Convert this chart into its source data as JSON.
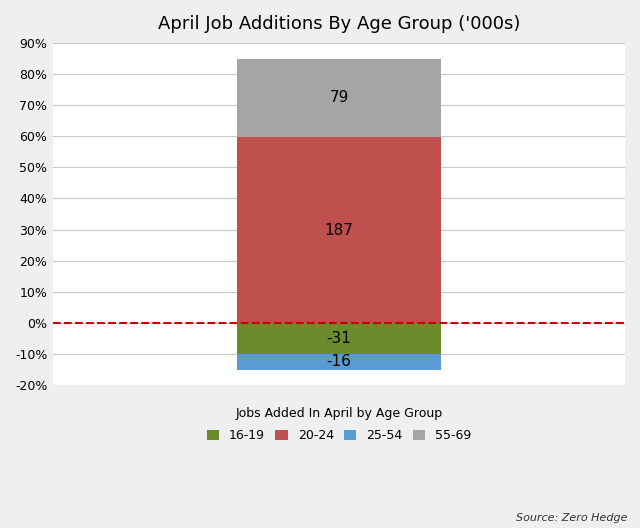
{
  "title": "April Job Additions By Age Group ('000s)",
  "xlabel": "Jobs Added In April by Age Group",
  "source": "Source: Zero Hedge",
  "segments": [
    {
      "label": "16-19",
      "value": -31,
      "scaled": -9.9,
      "color": "#6b8c2a"
    },
    {
      "label": "25-54",
      "value": -16,
      "scaled": -5.1,
      "color": "#5b9bd5"
    },
    {
      "label": "20-24",
      "value": 187,
      "scaled": 59.7,
      "color": "#c0504d"
    },
    {
      "label": "55-69",
      "value": 79,
      "scaled": 25.2,
      "color": "#a5a5a5"
    }
  ],
  "ylim": [
    -20,
    90
  ],
  "ytick_values": [
    -20,
    -10,
    0,
    10,
    20,
    30,
    40,
    50,
    60,
    70,
    80,
    90
  ],
  "ytick_labels": [
    "-20%",
    "-10%",
    "0%",
    "10%",
    "20%",
    "30%",
    "40%",
    "50%",
    "60%",
    "70%",
    "80%",
    "90%"
  ],
  "zero_line_color": "#cc0000",
  "background_color": "#efefef",
  "plot_bg_color": "#ffffff",
  "grid_color": "#c8c8c8",
  "bar_width": 0.5,
  "legend_order": [
    "16-19",
    "20-24",
    "25-54",
    "55-69"
  ],
  "pos_stack_order": [
    "20-24",
    "55-69"
  ],
  "neg_stack_order": [
    "16-19",
    "25-54"
  ],
  "label_fontsize": 11,
  "title_fontsize": 13,
  "xlabel_fontsize": 9,
  "legend_fontsize": 9
}
